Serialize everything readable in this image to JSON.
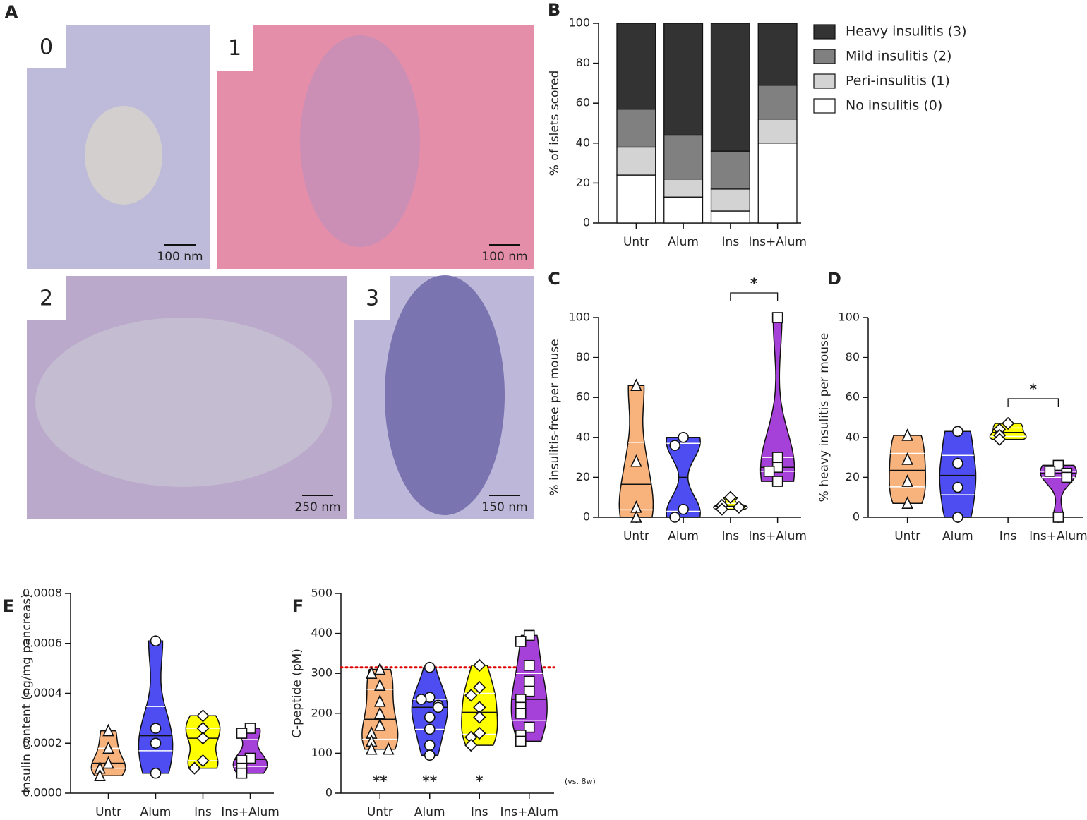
{
  "figure_a": {
    "label": "A",
    "images": [
      {
        "label": "0",
        "scale": "100 nm"
      },
      {
        "label": "1",
        "scale": "100 nm"
      },
      {
        "label": "2",
        "scale": "250 nm"
      },
      {
        "label": "3",
        "scale": "150 nm"
      }
    ]
  },
  "chart_data": [
    {
      "panel": "B",
      "type": "stacked_bar",
      "ylabel": "% of islets scored",
      "categories": [
        "Untr",
        "Alum",
        "Ins",
        "Ins+Alum"
      ],
      "series": [
        {
          "name": "Heavy insulitis (3)",
          "color": "#333333",
          "values": [
            43,
            56,
            64,
            31
          ]
        },
        {
          "name": "Mild insulitis (2)",
          "color": "#808080",
          "values": [
            19,
            22,
            19,
            17
          ]
        },
        {
          "name": "Peri-insulitis (1)",
          "color": "#d3d3d3",
          "values": [
            14,
            9,
            11,
            12
          ]
        },
        {
          "name": "No insulitis (0)",
          "color": "#ffffff",
          "values": [
            24,
            13,
            6,
            40
          ]
        }
      ],
      "ylim": [
        0,
        100
      ],
      "yticks": [
        0,
        20,
        40,
        60,
        80,
        100
      ]
    },
    {
      "panel": "C",
      "type": "violin",
      "ylabel": "% insulitis-free per mouse",
      "categories": [
        "Untr",
        "Alum",
        "Ins",
        "Ins+Alum"
      ],
      "groups": [
        {
          "color": "#f8b27c",
          "marker": "triangle",
          "values": [
            66,
            28,
            5,
            0
          ]
        },
        {
          "color": "#4d4df2",
          "marker": "circle",
          "values": [
            40,
            36,
            4,
            0
          ]
        },
        {
          "color": "#ffff00",
          "marker": "diamond",
          "values": [
            10,
            6,
            4,
            5
          ]
        },
        {
          "color": "#a540d8",
          "marker": "square",
          "values": [
            100,
            30,
            25,
            23,
            18
          ]
        }
      ],
      "comparisons": [
        {
          "between": [
            "Ins",
            "Ins+Alum"
          ],
          "label": "*"
        }
      ],
      "ylim": [
        0,
        100
      ],
      "yticks": [
        0,
        20,
        40,
        60,
        80,
        100
      ]
    },
    {
      "panel": "D",
      "type": "violin",
      "ylabel": "% heavy insulitis per mouse",
      "categories": [
        "Untr",
        "Alum",
        "Ins",
        "Ins+Alum"
      ],
      "groups": [
        {
          "color": "#f8b27c",
          "marker": "triangle",
          "values": [
            41,
            29,
            18,
            7
          ]
        },
        {
          "color": "#4d4df2",
          "marker": "circle",
          "values": [
            43,
            27,
            15,
            0
          ]
        },
        {
          "color": "#ffff00",
          "marker": "diamond",
          "values": [
            47,
            44,
            41,
            39
          ]
        },
        {
          "color": "#a540d8",
          "marker": "square",
          "values": [
            26,
            23,
            22,
            20,
            0
          ]
        }
      ],
      "comparisons": [
        {
          "between": [
            "Ins",
            "Ins+Alum"
          ],
          "label": "*"
        }
      ],
      "ylim": [
        0,
        100
      ],
      "yticks": [
        0,
        20,
        40,
        60,
        80,
        100
      ]
    },
    {
      "panel": "E",
      "type": "violin",
      "ylabel": "Insulin content (ng/mg pancreas)",
      "categories": [
        "Untr",
        "Alum",
        "Ins",
        "Ins+Alum"
      ],
      "groups": [
        {
          "color": "#f8b27c",
          "marker": "triangle",
          "values": [
            0.00025,
            0.00018,
            0.00012,
            0.0001,
            7e-05
          ]
        },
        {
          "color": "#4d4df2",
          "marker": "circle",
          "values": [
            0.00061,
            0.00026,
            0.0002,
            8e-05
          ]
        },
        {
          "color": "#ffff00",
          "marker": "diamond",
          "values": [
            0.00031,
            0.00026,
            0.00022,
            0.00013,
            0.0001
          ]
        },
        {
          "color": "#a540d8",
          "marker": "square",
          "values": [
            0.00026,
            0.00024,
            0.00014,
            0.00013,
            0.0001,
            8e-05
          ]
        }
      ],
      "ylim": [
        0,
        0.0008
      ],
      "yticks": [
        {
          "value": 0,
          "label": "0.0000"
        },
        {
          "value": 0.0002,
          "label": "0.0002"
        },
        {
          "value": 0.0004,
          "label": "0.0004"
        },
        {
          "value": 0.0006,
          "label": "0.0006"
        },
        {
          "value": 0.0008,
          "label": "0.0008"
        }
      ]
    },
    {
      "panel": "F",
      "type": "violin",
      "ylabel": "C-peptide (pM)",
      "categories": [
        "Untr",
        "Alum",
        "Ins",
        "Ins+Alum"
      ],
      "groups": [
        {
          "color": "#f8b27c",
          "marker": "triangle",
          "values": [
            310,
            300,
            270,
            230,
            200,
            170,
            150,
            130,
            110,
            110
          ]
        },
        {
          "color": "#4d4df2",
          "marker": "circle",
          "values": [
            315,
            240,
            235,
            220,
            215,
            190,
            160,
            120,
            95
          ]
        },
        {
          "color": "#ffff00",
          "marker": "diamond",
          "values": [
            320,
            265,
            245,
            215,
            190,
            150,
            140,
            120
          ]
        },
        {
          "color": "#a540d8",
          "marker": "square",
          "values": [
            395,
            380,
            320,
            280,
            255,
            235,
            215,
            200,
            165,
            145,
            130
          ]
        }
      ],
      "reference_line": {
        "value": 315,
        "color": "#e00000"
      },
      "annotations": [
        {
          "category": "Untr",
          "text": "**"
        },
        {
          "category": "Alum",
          "text": "**"
        },
        {
          "category": "Ins",
          "text": "*"
        }
      ],
      "note": "(vs. 8w)",
      "ylim": [
        0,
        500
      ],
      "yticks": [
        0,
        100,
        200,
        300,
        400,
        500
      ]
    }
  ]
}
